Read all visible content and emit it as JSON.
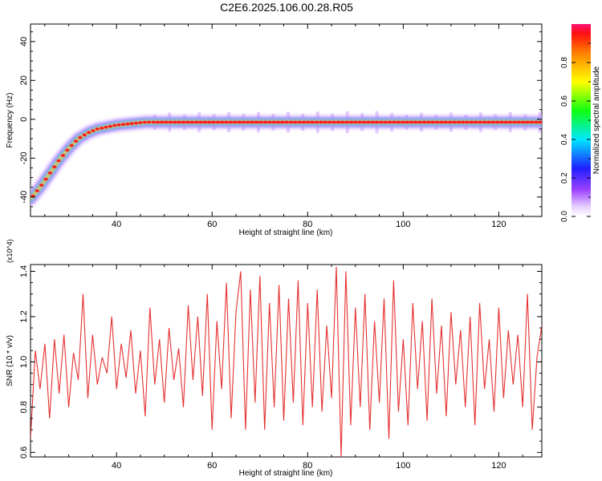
{
  "title": "C2E6.2025.106.00.28.R05",
  "colors": {
    "snr_line": "#e53030",
    "axis": "#000000",
    "background": "#ffffff"
  },
  "chart_data": [
    {
      "type": "heatmap",
      "xlabel": "Height of straight line (km)",
      "ylabel": "Frequency (Hz)",
      "xlim": [
        22,
        129
      ],
      "ylim": [
        -50,
        49
      ],
      "x_ticks": [
        40,
        60,
        80,
        100,
        120
      ],
      "y_ticks": [
        -40,
        -20,
        0,
        20,
        40
      ],
      "grid": false,
      "colorbar": {
        "label": "Normalized spectral amplitude",
        "range": [
          0,
          1
        ],
        "ticks": [
          "0.0",
          "0.2",
          "0.4",
          "0.6",
          "0.8"
        ],
        "colormap": "rainbow"
      },
      "ridge": [
        {
          "x": 22,
          "y": -41
        },
        {
          "x": 24,
          "y": -35
        },
        {
          "x": 26,
          "y": -28
        },
        {
          "x": 28,
          "y": -21
        },
        {
          "x": 30,
          "y": -15
        },
        {
          "x": 32,
          "y": -10
        },
        {
          "x": 34,
          "y": -7
        },
        {
          "x": 36,
          "y": -5
        },
        {
          "x": 38,
          "y": -4
        },
        {
          "x": 40,
          "y": -3
        },
        {
          "x": 42,
          "y": -2.5
        },
        {
          "x": 44,
          "y": -2
        },
        {
          "x": 46,
          "y": -1.5
        },
        {
          "x": 48,
          "y": -1.5
        },
        {
          "x": 129,
          "y": -1.5
        }
      ]
    },
    {
      "type": "line",
      "xlabel": "Height of straight line (km)",
      "ylabel": "SNR (10 * v/v)",
      "y_multiplier": "(x10^4)",
      "xlim": [
        22,
        129
      ],
      "ylim": [
        0.58,
        1.43
      ],
      "x_ticks": [
        40,
        60,
        80,
        100,
        120
      ],
      "y_ticks": [
        0.6,
        0.8,
        1.0,
        1.2,
        1.4
      ],
      "grid": false,
      "series": [
        {
          "x": [
            22,
            23,
            24,
            25,
            26,
            27,
            28,
            29,
            30,
            31,
            32,
            33,
            34,
            35,
            36,
            37,
            38,
            39,
            40,
            41,
            42,
            43,
            44,
            45,
            46,
            47,
            48,
            49,
            50,
            51,
            52,
            53,
            54,
            55,
            56,
            57,
            58,
            59,
            60,
            61,
            62,
            63,
            64,
            65,
            66,
            67,
            68,
            69,
            70,
            71,
            72,
            73,
            74,
            75,
            76,
            77,
            78,
            79,
            80,
            81,
            82,
            83,
            84,
            85,
            86,
            87,
            88,
            89,
            90,
            91,
            92,
            93,
            94,
            95,
            96,
            97,
            98,
            99,
            100,
            101,
            102,
            103,
            104,
            105,
            106,
            107,
            108,
            109,
            110,
            111,
            112,
            113,
            114,
            115,
            116,
            117,
            118,
            119,
            120,
            121,
            122,
            123,
            124,
            125,
            126,
            127,
            128,
            129
          ],
          "y": [
            0.66,
            1.05,
            0.88,
            1.08,
            0.75,
            1.1,
            0.86,
            1.12,
            0.8,
            1.04,
            0.92,
            1.3,
            0.84,
            1.12,
            0.9,
            1.02,
            0.95,
            1.2,
            0.88,
            1.08,
            0.93,
            1.14,
            0.86,
            1.05,
            0.76,
            1.24,
            0.9,
            1.1,
            0.82,
            1.15,
            0.92,
            1.06,
            0.8,
            1.25,
            0.92,
            1.2,
            0.85,
            1.3,
            0.7,
            1.18,
            0.88,
            1.35,
            0.75,
            1.22,
            1.4,
            0.7,
            1.32,
            0.82,
            1.38,
            0.7,
            1.26,
            0.8,
            1.34,
            0.74,
            1.28,
            0.82,
            1.36,
            0.72,
            1.26,
            0.8,
            1.32,
            0.78,
            1.16,
            0.84,
            1.42,
            0.58,
            1.4,
            0.72,
            1.24,
            0.8,
            1.3,
            0.7,
            1.18,
            0.82,
            1.28,
            0.66,
            1.36,
            0.78,
            1.1,
            0.72,
            1.26,
            0.88,
            1.18,
            0.74,
            1.28,
            0.86,
            1.16,
            0.76,
            1.22,
            0.9,
            1.14,
            0.8,
            1.2,
            0.72,
            1.26,
            0.88,
            1.1,
            0.78,
            1.24,
            0.84,
            1.14,
            0.9,
            1.12,
            0.8,
            1.3,
            0.7,
            1.02,
            1.16
          ]
        }
      ]
    }
  ]
}
